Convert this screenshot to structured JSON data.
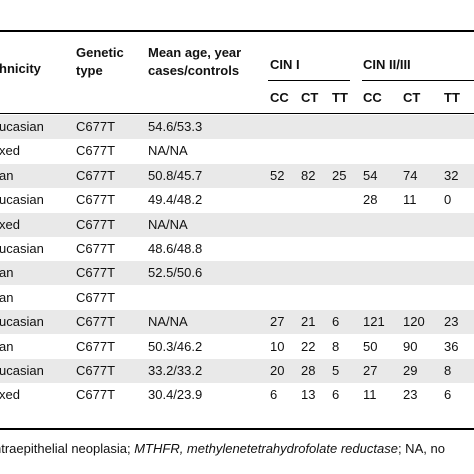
{
  "headers": {
    "ethnicity": "hnicity",
    "genetic": [
      "Genetic",
      "type"
    ],
    "mean": [
      "Mean age, year",
      "cases/controls"
    ],
    "cin1": "CIN I",
    "cin23": "CIN II/III",
    "sub": [
      "CC",
      "CT",
      "TT",
      "CC",
      "CT",
      "TT"
    ]
  },
  "rows": [
    {
      "eth": "ucasian",
      "gen": "C677T",
      "mean": "54.6/53.3",
      "v": [
        "",
        "",
        "",
        "",
        "",
        ""
      ]
    },
    {
      "eth": "xed",
      "gen": "C677T",
      "mean": "NA/NA",
      "v": [
        "",
        "",
        "",
        "",
        "",
        ""
      ]
    },
    {
      "eth": "an",
      "gen": "C677T",
      "mean": "50.8/45.7",
      "v": [
        "52",
        "82",
        "25",
        "54",
        "74",
        "32"
      ]
    },
    {
      "eth": "ucasian",
      "gen": "C677T",
      "mean": "49.4/48.2",
      "v": [
        "",
        "",
        "",
        "28",
        "11",
        "0"
      ]
    },
    {
      "eth": "xed",
      "gen": "C677T",
      "mean": "NA/NA",
      "v": [
        "",
        "",
        "",
        "",
        "",
        ""
      ]
    },
    {
      "eth": "ucasian",
      "gen": "C677T",
      "mean": "48.6/48.8",
      "v": [
        "",
        "",
        "",
        "",
        "",
        ""
      ]
    },
    {
      "eth": "an",
      "gen": "C677T",
      "mean": "52.5/50.6",
      "v": [
        "",
        "",
        "",
        "",
        "",
        ""
      ]
    },
    {
      "eth": "an",
      "gen": "C677T",
      "mean": "",
      "v": [
        "",
        "",
        "",
        "",
        "",
        ""
      ]
    },
    {
      "eth": "ucasian",
      "gen": "C677T",
      "mean": "NA/NA",
      "v": [
        "27",
        "21",
        "6",
        "121",
        "120",
        "23"
      ]
    },
    {
      "eth": "an",
      "gen": "C677T",
      "mean": "50.3/46.2",
      "v": [
        "10",
        "22",
        "8",
        "50",
        "90",
        "36"
      ]
    },
    {
      "eth": "ucasian",
      "gen": "C677T",
      "mean": "33.2/33.2",
      "v": [
        "20",
        "28",
        "5",
        "27",
        "29",
        "8"
      ]
    },
    {
      "eth": "xed",
      "gen": "C677T",
      "mean": "30.4/23.9",
      "v": [
        "6",
        "13",
        "6",
        "11",
        "23",
        "6"
      ]
    }
  ],
  "footnote": {
    "part1": "ntraepithelial neoplasia; ",
    "italic": "MTHFR, methylenetetrahydrofolate reductase",
    "part2": "; NA, no"
  }
}
